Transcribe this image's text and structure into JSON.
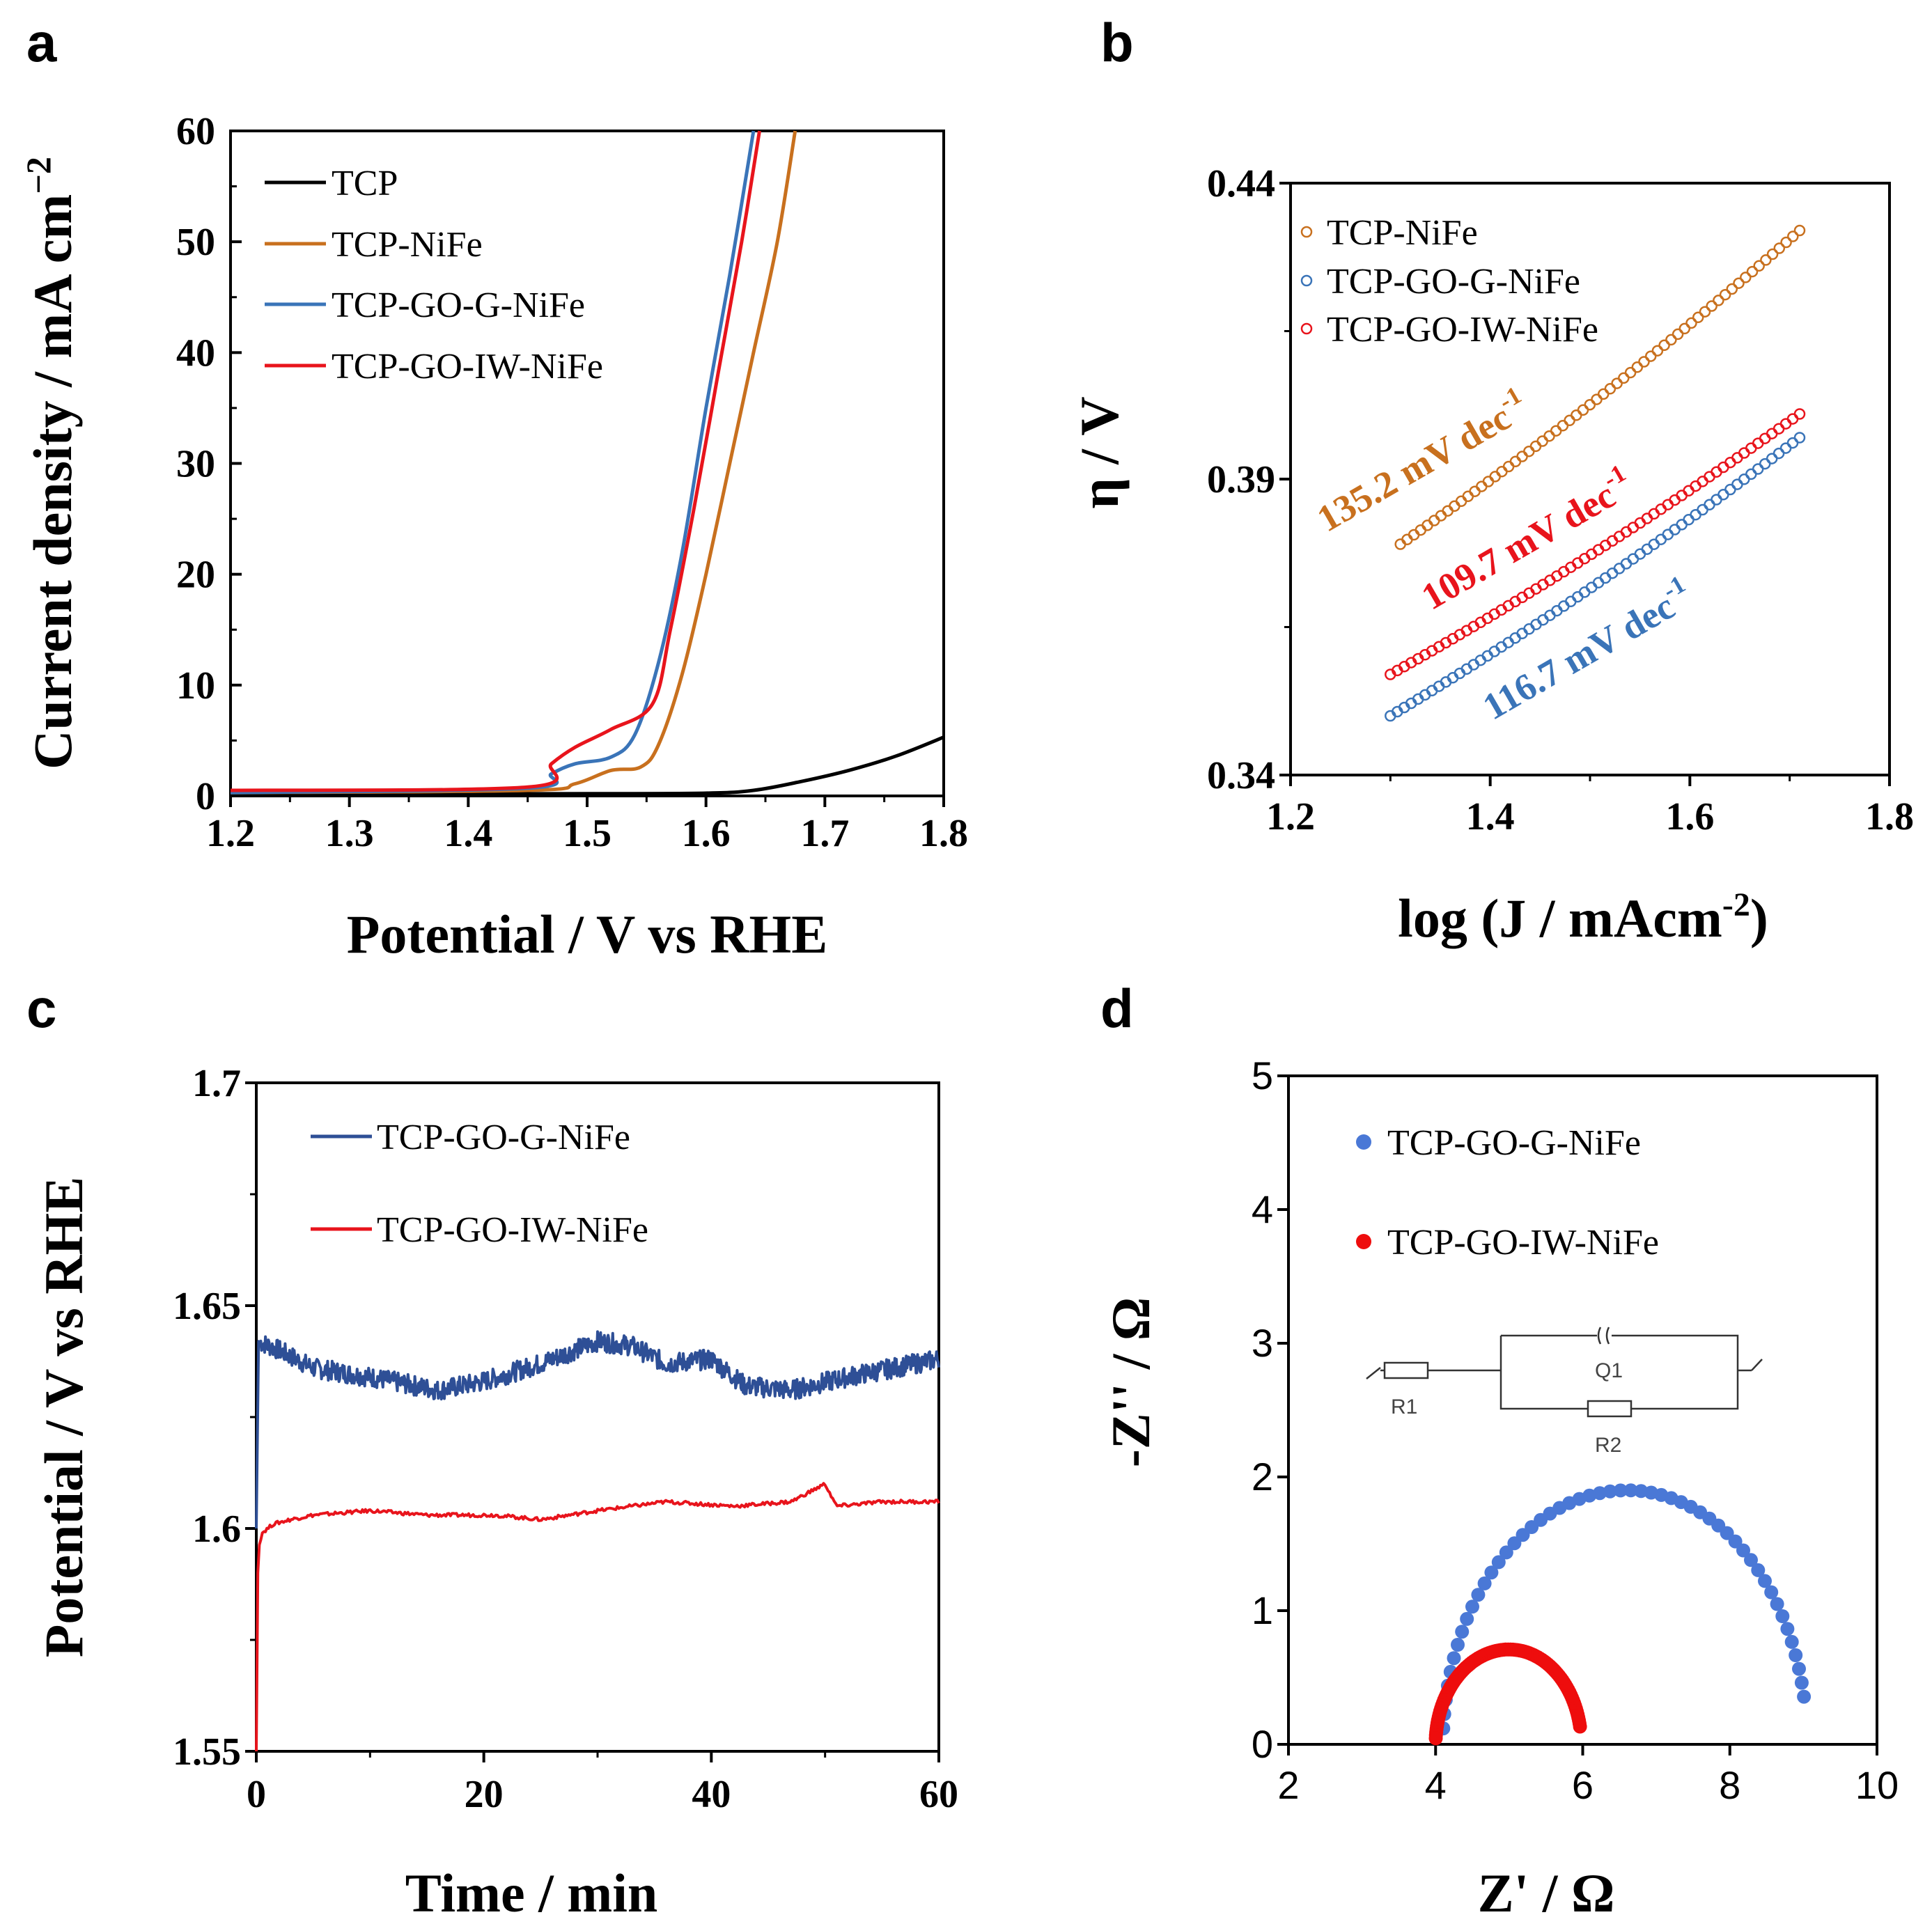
{
  "colors": {
    "tcp": "#000000",
    "tcp_nife": "#c8701e",
    "go_g": "#3a74b8",
    "go_iw": "#e8141c",
    "go_g_c": "#2e4f96",
    "eis_blue": "#4a78d6",
    "eis_red": "#ee0d0d"
  },
  "panels": {
    "a": "a",
    "b": "b",
    "c": "c",
    "d": "d"
  },
  "circuit": {
    "r1": "R1",
    "q1": "Q1",
    "r2": "R2"
  },
  "chart_data": [
    {
      "id": "a",
      "type": "line",
      "xlabel": "Potential / V vs RHE",
      "ylabel": "Current density / mA cm",
      "ylabel_sup": "−2",
      "xlim": [
        1.2,
        1.8
      ],
      "ylim": [
        0,
        60
      ],
      "xticks": [
        "1.2",
        "1.3",
        "1.4",
        "1.5",
        "1.6",
        "1.7",
        "1.8"
      ],
      "yticks": [
        "0",
        "10",
        "20",
        "30",
        "40",
        "50",
        "60"
      ],
      "legend": [
        "TCP",
        "TCP-NiFe",
        "TCP-GO-G-NiFe",
        "TCP-GO-IW-NiFe"
      ],
      "series": [
        {
          "name": "TCP",
          "color": "#000000",
          "x": [
            1.2,
            1.4,
            1.5,
            1.6,
            1.64,
            1.68,
            1.72,
            1.76,
            1.8
          ],
          "y": [
            0.2,
            0.2,
            0.2,
            0.25,
            0.5,
            1.3,
            2.3,
            3.6,
            5.3
          ]
        },
        {
          "name": "TCP-NiFe",
          "color": "#c8701e",
          "x": [
            1.2,
            1.45,
            1.49,
            1.52,
            1.545,
            1.56,
            1.58,
            1.6,
            1.62,
            1.64,
            1.66,
            1.675
          ],
          "y": [
            0.3,
            0.5,
            1.1,
            2.3,
            2.6,
            4.6,
            11.0,
            20.0,
            30.0,
            40.0,
            50.0,
            60.0
          ]
        },
        {
          "name": "TCP-GO-G-NiFe",
          "color": "#3a74b8",
          "x": [
            1.2,
            1.45,
            1.47,
            1.49,
            1.52,
            1.54,
            1.56,
            1.58,
            1.6,
            1.62,
            1.64
          ],
          "y": [
            0.3,
            0.7,
            2.0,
            2.9,
            3.5,
            5.5,
            12.0,
            22.0,
            35.0,
            47.0,
            60.0
          ]
        },
        {
          "name": "TCP-GO-IW-NiFe",
          "color": "#e8141c",
          "x": [
            1.2,
            1.45,
            1.47,
            1.49,
            1.52,
            1.555,
            1.57,
            1.59,
            1.61,
            1.63,
            1.645
          ],
          "y": [
            0.5,
            0.8,
            2.9,
            4.4,
            6.0,
            8.3,
            15.0,
            26.0,
            38.0,
            50.0,
            60.0
          ]
        }
      ]
    },
    {
      "id": "b",
      "type": "scatter",
      "xlabel": "log (J / mAcm",
      "xlabel_sup": "-2",
      "xlabel_end": ")",
      "ylabel": "η / V",
      "xlim": [
        1.2,
        1.8
      ],
      "ylim": [
        0.34,
        0.44
      ],
      "xticks": [
        "1.2",
        "1.4",
        "1.6",
        "1.8"
      ],
      "yticks": [
        "0.34",
        "0.39",
        "0.44"
      ],
      "legend": [
        "TCP-NiFe",
        "TCP-GO-G-NiFe",
        "TCP-GO-IW-NiFe"
      ],
      "series": [
        {
          "name": "TCP-NiFe",
          "color": "#c8701e",
          "x_range": [
            1.31,
            1.71
          ],
          "y_range": [
            0.379,
            0.432
          ],
          "points": 60
        },
        {
          "name": "TCP-GO-G-NiFe",
          "color": "#3a74b8",
          "x_range": [
            1.3,
            1.71
          ],
          "y_range": [
            0.35,
            0.397
          ],
          "points": 60
        },
        {
          "name": "TCP-GO-IW-NiFe",
          "color": "#e8141c",
          "x_range": [
            1.3,
            1.71
          ],
          "y_range": [
            0.357,
            0.401
          ],
          "points": 60
        }
      ],
      "annotations": [
        {
          "text": "135.2 mV dec",
          "sup": "-1",
          "color": "#c8701e"
        },
        {
          "text": "109.7 mV dec",
          "sup": "-1",
          "color": "#e8141c"
        },
        {
          "text": "116.7 mV dec",
          "sup": "-1",
          "color": "#3a74b8"
        }
      ]
    },
    {
      "id": "c",
      "type": "line",
      "xlabel": "Time / min",
      "ylabel": "Potential /  V vs RHE",
      "xlim": [
        0,
        60
      ],
      "ylim": [
        1.55,
        1.7
      ],
      "xticks": [
        "0",
        "20",
        "40",
        "60"
      ],
      "yticks": [
        "1.55",
        "1.6",
        "1.65",
        "1.7"
      ],
      "legend": [
        "TCP-GO-G-NiFe",
        "TCP-GO-IW-NiFe"
      ],
      "series": [
        {
          "name": "TCP-GO-G-NiFe",
          "color": "#2e4f96",
          "x": [
            0,
            0.2,
            2,
            5,
            10,
            16,
            20,
            25,
            30,
            33,
            36,
            40,
            43,
            47,
            52,
            56,
            60
          ],
          "y": [
            1.6,
            1.642,
            1.64,
            1.636,
            1.634,
            1.631,
            1.633,
            1.637,
            1.642,
            1.641,
            1.637,
            1.638,
            1.632,
            1.631,
            1.634,
            1.636,
            1.638
          ]
        },
        {
          "name": "TCP-GO-IW-NiFe",
          "color": "#e8141c",
          "x": [
            0,
            0.15,
            0.5,
            1.5,
            3,
            5,
            10,
            15,
            21,
            25,
            30,
            36,
            42,
            47,
            50,
            51,
            55,
            60
          ],
          "y": [
            1.55,
            1.595,
            1.599,
            1.601,
            1.602,
            1.603,
            1.604,
            1.603,
            1.603,
            1.602,
            1.604,
            1.606,
            1.605,
            1.606,
            1.61,
            1.605,
            1.606,
            1.606
          ]
        }
      ]
    },
    {
      "id": "d",
      "type": "scatter",
      "xlabel": "Z' / Ω",
      "ylabel": "-Z'' / Ω",
      "xlim": [
        2,
        10
      ],
      "ylim": [
        0,
        5
      ],
      "xticks": [
        "2",
        "4",
        "6",
        "8",
        "10"
      ],
      "yticks": [
        "0",
        "1",
        "2",
        "3",
        "4",
        "5"
      ],
      "legend": [
        "TCP-GO-G-NiFe",
        "TCP-GO-IW-NiFe"
      ],
      "series": [
        {
          "name": "TCP-GO-G-NiFe",
          "color": "#4a78d6",
          "r1": 4.1,
          "r2": 5.0,
          "depression": 0.76,
          "points": 52
        },
        {
          "name": "TCP-GO-IW-NiFe",
          "color": "#ee0d0d",
          "r1": 4.0,
          "r2": 2.0,
          "depression": 0.71,
          "points": 90
        }
      ]
    }
  ]
}
